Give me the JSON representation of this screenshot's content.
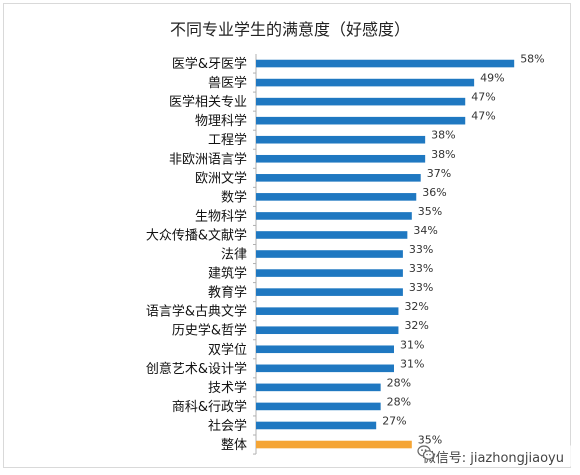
{
  "chart_data": {
    "type": "bar",
    "orientation": "horizontal",
    "title": "不同专业学生的满意度（好感度）",
    "categories": [
      "医学&牙医学",
      "兽医学",
      "医学相关专业",
      "物理科学",
      "工程学",
      "非欧洲语言学",
      "欧洲文学",
      "数学",
      "生物科学",
      "大众传播&文献学",
      "法律",
      "建筑学",
      "教育学",
      "语言学&古典文学",
      "历史学&哲学",
      "双学位",
      "创意艺术&设计学",
      "技术学",
      "商科&行政学",
      "社会学",
      "整体"
    ],
    "values": [
      58,
      49,
      47,
      47,
      38,
      38,
      37,
      36,
      35,
      34,
      33,
      33,
      33,
      32,
      32,
      31,
      31,
      28,
      28,
      27,
      35
    ],
    "value_labels": [
      "58%",
      "49%",
      "47%",
      "47%",
      "38%",
      "38%",
      "37%",
      "36%",
      "35%",
      "34%",
      "33%",
      "33%",
      "33%",
      "32%",
      "32%",
      "31%",
      "31%",
      "28%",
      "28%",
      "27%",
      "35%"
    ],
    "highlight_category": "整体",
    "xlim": [
      0,
      62
    ],
    "xlabel": "",
    "ylabel": "",
    "grid": false,
    "colors": {
      "bar": "#1f78c1",
      "highlight": "#f5a535",
      "axis": "#b0b0b0"
    }
  },
  "watermark": {
    "icon": "wechat-icon",
    "text": "微信号: jiazhongjiaoyu"
  }
}
